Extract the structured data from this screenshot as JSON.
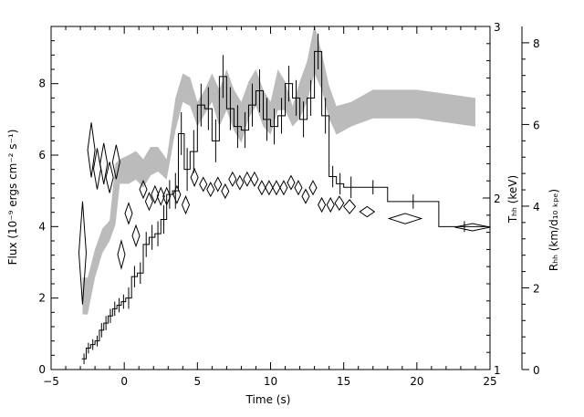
{
  "chart_data": {
    "type": "line",
    "xlabel": "Time (s)",
    "ylabel_left": "Flux (10⁻⁹ ergs cm⁻² s⁻¹)",
    "ylabel_right_inner": "Tₕₕ (keV)",
    "ylabel_right_outer": "Rₕₕ (km/d₁₀ ₖₚₑ)",
    "xlim": [
      -5,
      25
    ],
    "ylim_left": [
      0,
      9.6
    ],
    "tb_range": [
      1,
      3
    ],
    "rb_range": [
      0,
      8.4
    ],
    "x_ticks": [
      -5,
      0,
      5,
      10,
      15,
      20,
      25
    ],
    "x_tick_labels": [
      "−5",
      "0",
      "5",
      "10",
      "15",
      "20",
      "25"
    ],
    "y_left_ticks": [
      0,
      2,
      4,
      6,
      8
    ],
    "y_left_tick_labels": [
      "0",
      "2",
      "4",
      "6",
      "8"
    ],
    "tb_ticks": [
      1,
      2,
      3
    ],
    "tb_tick_labels": [
      "1",
      "2",
      "3"
    ],
    "rb_ticks": [
      0,
      2,
      4,
      6,
      8
    ],
    "rb_tick_labels": [
      "0",
      "2",
      "4",
      "6",
      "8"
    ],
    "series": [
      {
        "kind": "flux-histogram",
        "color": "#000000",
        "edges": [
          -2.9,
          -2.6,
          -2.3,
          -2.0,
          -1.7,
          -1.4,
          -1.1,
          -0.8,
          -0.5,
          -0.2,
          0.1,
          0.5,
          0.9,
          1.3,
          1.7,
          2.1,
          2.5,
          2.9,
          3.3,
          3.7,
          4.1,
          4.5,
          5.0,
          5.5,
          6.0,
          6.5,
          7.0,
          7.5,
          8.0,
          8.5,
          9.0,
          9.5,
          10.0,
          10.5,
          11.0,
          11.5,
          12.0,
          12.5,
          13.0,
          13.5,
          14.0,
          14.5,
          15.0,
          16.0,
          18.0,
          21.5,
          25.0
        ],
        "values": [
          0.3,
          0.6,
          0.7,
          0.8,
          1.1,
          1.3,
          1.5,
          1.7,
          1.8,
          1.9,
          2.0,
          2.6,
          2.7,
          3.5,
          3.7,
          3.8,
          4.2,
          4.9,
          5.0,
          6.6,
          5.6,
          6.1,
          7.4,
          7.3,
          6.4,
          8.2,
          7.3,
          6.8,
          6.7,
          7.4,
          7.8,
          7.0,
          6.8,
          7.1,
          8.0,
          7.6,
          7.0,
          7.6,
          8.9,
          7.1,
          5.4,
          5.2,
          5.1,
          5.1,
          4.7,
          4.0
        ],
        "errors": [
          0.15,
          0.15,
          0.15,
          0.15,
          0.2,
          0.2,
          0.2,
          0.2,
          0.2,
          0.2,
          0.3,
          0.3,
          0.3,
          0.35,
          0.35,
          0.35,
          0.4,
          0.4,
          0.5,
          0.6,
          0.6,
          0.6,
          0.6,
          0.6,
          0.6,
          0.6,
          0.6,
          0.6,
          0.5,
          0.6,
          0.6,
          0.6,
          0.5,
          0.5,
          0.5,
          0.5,
          0.5,
          0.5,
          0.5,
          0.5,
          0.3,
          0.3,
          0.3,
          0.2,
          0.2,
          0.15
        ]
      },
      {
        "kind": "temperature-diamonds",
        "color": "#000000",
        "axis": "T (keV)",
        "points": [
          [
            -2.85,
            1.68,
            0.15,
            0.3
          ],
          [
            -2.25,
            2.28,
            0.15,
            0.16
          ],
          [
            -1.85,
            2.17,
            0.14,
            0.12
          ],
          [
            -1.4,
            2.2,
            0.14,
            0.12
          ],
          [
            -1.0,
            2.12,
            0.14,
            0.09
          ],
          [
            -0.55,
            2.21,
            0.12,
            0.1
          ],
          [
            -0.2,
            1.67,
            0.12,
            0.08
          ],
          [
            0.3,
            1.91,
            0.12,
            0.06
          ],
          [
            0.8,
            1.78,
            0.12,
            0.06
          ],
          [
            1.3,
            2.05,
            0.12,
            0.05
          ],
          [
            1.7,
            1.98,
            0.12,
            0.05
          ],
          [
            2.1,
            2.02,
            0.12,
            0.05
          ],
          [
            2.5,
            2.01,
            0.12,
            0.05
          ],
          [
            2.9,
            2.01,
            0.12,
            0.05
          ],
          [
            3.6,
            2.02,
            0.12,
            0.05
          ],
          [
            4.2,
            1.96,
            0.12,
            0.05
          ],
          [
            4.8,
            2.12,
            0.12,
            0.05
          ],
          [
            5.4,
            2.08,
            0.12,
            0.04
          ],
          [
            5.9,
            2.05,
            0.12,
            0.04
          ],
          [
            6.4,
            2.08,
            0.12,
            0.04
          ],
          [
            6.9,
            2.04,
            0.12,
            0.04
          ],
          [
            7.4,
            2.11,
            0.12,
            0.04
          ],
          [
            7.9,
            2.09,
            0.12,
            0.04
          ],
          [
            8.4,
            2.11,
            0.12,
            0.04
          ],
          [
            8.9,
            2.11,
            0.12,
            0.04
          ],
          [
            9.4,
            2.06,
            0.12,
            0.04
          ],
          [
            9.9,
            2.06,
            0.12,
            0.04
          ],
          [
            10.4,
            2.06,
            0.12,
            0.04
          ],
          [
            10.9,
            2.06,
            0.12,
            0.04
          ],
          [
            11.4,
            2.09,
            0.12,
            0.04
          ],
          [
            11.9,
            2.06,
            0.12,
            0.04
          ],
          [
            12.4,
            2.01,
            0.12,
            0.04
          ],
          [
            12.9,
            2.06,
            0.12,
            0.04
          ],
          [
            13.5,
            1.96,
            0.25,
            0.04
          ],
          [
            14.1,
            1.96,
            0.25,
            0.04
          ],
          [
            14.7,
            1.97,
            0.3,
            0.04
          ],
          [
            15.4,
            1.95,
            0.4,
            0.04
          ],
          [
            16.6,
            1.92,
            0.5,
            0.03
          ],
          [
            19.2,
            1.88,
            1.1,
            0.03
          ],
          [
            23.8,
            1.83,
            1.2,
            0.02
          ]
        ]
      },
      {
        "kind": "radius-band",
        "color": "#bbbbbb",
        "axis": "R (km/d10 kpc)",
        "points": [
          [
            -2.85,
            2.25,
            1.35
          ],
          [
            -2.5,
            2.25,
            1.35
          ],
          [
            -2.0,
            2.95,
            2.25
          ],
          [
            -1.5,
            3.45,
            2.85
          ],
          [
            -1.0,
            3.65,
            3.15
          ],
          [
            -0.6,
            5.05,
            3.55
          ],
          [
            -0.3,
            5.15,
            4.55
          ],
          [
            0.3,
            5.25,
            4.55
          ],
          [
            0.8,
            5.35,
            4.65
          ],
          [
            1.3,
            5.15,
            4.45
          ],
          [
            1.8,
            5.45,
            4.75
          ],
          [
            2.3,
            5.45,
            4.85
          ],
          [
            2.9,
            5.15,
            4.65
          ],
          [
            3.5,
            6.65,
            5.85
          ],
          [
            4.0,
            7.25,
            6.55
          ],
          [
            4.5,
            7.15,
            6.45
          ],
          [
            5.0,
            6.55,
            5.95
          ],
          [
            5.5,
            6.85,
            6.25
          ],
          [
            6.0,
            7.25,
            6.55
          ],
          [
            6.5,
            6.85,
            5.95
          ],
          [
            7.0,
            7.35,
            6.35
          ],
          [
            7.5,
            6.85,
            5.85
          ],
          [
            8.0,
            6.55,
            5.55
          ],
          [
            8.5,
            7.05,
            6.15
          ],
          [
            9.0,
            7.35,
            6.45
          ],
          [
            9.5,
            6.85,
            5.95
          ],
          [
            10.0,
            6.55,
            5.75
          ],
          [
            10.5,
            7.35,
            6.35
          ],
          [
            11.0,
            7.05,
            6.35
          ],
          [
            11.5,
            6.45,
            5.95
          ],
          [
            12.0,
            7.05,
            6.15
          ],
          [
            12.5,
            7.55,
            6.55
          ],
          [
            13.0,
            8.45,
            7.25
          ],
          [
            13.5,
            7.75,
            6.85
          ],
          [
            14.0,
            6.95,
            6.15
          ],
          [
            14.5,
            6.45,
            5.75
          ],
          [
            15.5,
            6.55,
            5.95
          ],
          [
            17.0,
            6.85,
            6.15
          ],
          [
            20.0,
            6.85,
            6.15
          ],
          [
            24.0,
            6.65,
            5.95
          ]
        ]
      }
    ]
  }
}
